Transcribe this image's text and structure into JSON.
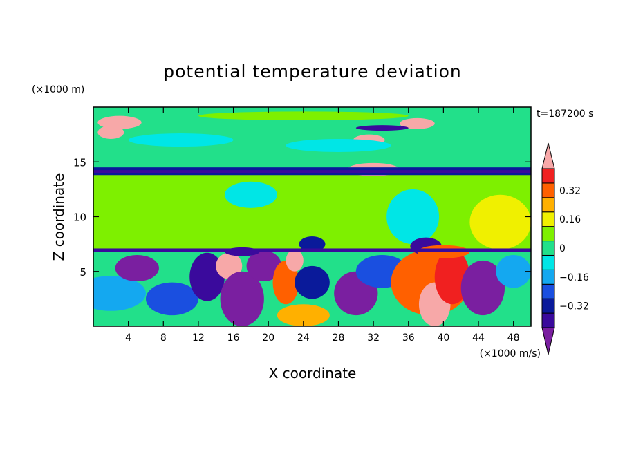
{
  "chart_data": {
    "type": "heatmap",
    "title": "potential temperature deviation",
    "xlabel": "X coordinate",
    "ylabel": "Z coordinate",
    "x_unit": "(×1000 m/s)",
    "y_unit": "(×1000 m)",
    "time_label": "t=187200 s",
    "xlim": [
      0,
      50
    ],
    "ylim": [
      0,
      20
    ],
    "x_ticks": [
      4,
      8,
      12,
      16,
      20,
      24,
      28,
      32,
      36,
      40,
      44,
      48
    ],
    "y_ticks": [
      5,
      10,
      15
    ],
    "colorbar": {
      "levels": [
        -0.48,
        -0.4,
        -0.32,
        -0.24,
        -0.16,
        -0.08,
        0,
        0.08,
        0.16,
        0.24,
        0.32,
        0.4,
        0.48
      ],
      "colors": [
        "#7a1fa0",
        "#3a0a9c",
        "#0a1a9a",
        "#1a4fe0",
        "#14a8f0",
        "#00e6e6",
        "#22e08a",
        "#7ef000",
        "#f0f000",
        "#ffb000",
        "#ff6000",
        "#f02020",
        "#f7a8a8"
      ],
      "tick_values": [
        -0.32,
        -0.16,
        0,
        0.16,
        0.32
      ],
      "tick_labels": [
        "−0.32",
        "−0.16",
        "0",
        "0.16",
        "0.32"
      ],
      "extend": "both"
    },
    "field_note_blobs": [
      {
        "cx": 2,
        "cy": 3,
        "rx": 4,
        "ry": 1.6,
        "v": -0.17
      },
      {
        "cx": 5,
        "cy": 5.3,
        "rx": 2.5,
        "ry": 1.2,
        "v": -0.45
      },
      {
        "cx": 9,
        "cy": 2.5,
        "rx": 3,
        "ry": 1.5,
        "v": -0.22
      },
      {
        "cx": 13,
        "cy": 4.5,
        "rx": 2,
        "ry": 2.2,
        "v": -0.42
      },
      {
        "cx": 15.5,
        "cy": 5.5,
        "rx": 1.5,
        "ry": 1.2,
        "v": 0.45
      },
      {
        "cx": 17,
        "cy": 2.5,
        "rx": 2.5,
        "ry": 2.5,
        "v": -0.46
      },
      {
        "cx": 19.5,
        "cy": 5.5,
        "rx": 2,
        "ry": 1.4,
        "v": -0.45
      },
      {
        "cx": 22,
        "cy": 4,
        "rx": 1.5,
        "ry": 2,
        "v": 0.3
      },
      {
        "cx": 23,
        "cy": 6,
        "rx": 1,
        "ry": 1,
        "v": 0.46
      },
      {
        "cx": 25,
        "cy": 4,
        "rx": 2,
        "ry": 1.5,
        "v": -0.35
      },
      {
        "cx": 24,
        "cy": 1,
        "rx": 3,
        "ry": 1,
        "v": 0.2
      },
      {
        "cx": 30,
        "cy": 3,
        "rx": 2.5,
        "ry": 2,
        "v": -0.45
      },
      {
        "cx": 33,
        "cy": 5,
        "rx": 3,
        "ry": 1.5,
        "v": -0.2
      },
      {
        "cx": 38.5,
        "cy": 4,
        "rx": 4.5,
        "ry": 3,
        "v": 0.3
      },
      {
        "cx": 39,
        "cy": 2,
        "rx": 1.8,
        "ry": 2,
        "v": 0.5
      },
      {
        "cx": 41,
        "cy": 4.5,
        "rx": 2,
        "ry": 2.5,
        "v": 0.4
      },
      {
        "cx": 44.5,
        "cy": 3.5,
        "rx": 2.5,
        "ry": 2.5,
        "v": -0.45
      },
      {
        "cx": 48,
        "cy": 5,
        "rx": 2,
        "ry": 1.5,
        "v": -0.15
      },
      {
        "cx": 46.5,
        "cy": 9.5,
        "rx": 3.5,
        "ry": 2.5,
        "v": 0.18
      },
      {
        "cx": 36.5,
        "cy": 10,
        "rx": 3,
        "ry": 2.5,
        "v": -0.08
      },
      {
        "cx": 18,
        "cy": 12,
        "rx": 3,
        "ry": 1.2,
        "v": -0.1
      },
      {
        "cx": 38,
        "cy": 7.3,
        "rx": 1.8,
        "ry": 0.8,
        "v": -0.4
      },
      {
        "cx": 25,
        "cy": 7.5,
        "rx": 1.5,
        "ry": 0.7,
        "v": -0.3
      },
      {
        "cx": 17,
        "cy": 6.8,
        "rx": 2,
        "ry": 0.4,
        "v": -0.4
      },
      {
        "cx": 40,
        "cy": 6.8,
        "rx": 3,
        "ry": 0.6,
        "v": 0.35
      },
      {
        "cx": 3,
        "cy": 18.6,
        "rx": 2.5,
        "ry": 0.6,
        "v": 0.48
      },
      {
        "cx": 2,
        "cy": 17.7,
        "rx": 1.5,
        "ry": 0.6,
        "v": 0.48
      },
      {
        "cx": 37,
        "cy": 18.5,
        "rx": 2,
        "ry": 0.5,
        "v": 0.48
      },
      {
        "cx": 31.5,
        "cy": 17,
        "rx": 1.8,
        "ry": 0.5,
        "v": 0.48
      },
      {
        "cx": 32,
        "cy": 14.3,
        "rx": 3,
        "ry": 0.6,
        "v": 0.48
      },
      {
        "cx": 33,
        "cy": 18.1,
        "rx": 3,
        "ry": 0.25,
        "v": -0.4
      },
      {
        "cx": 10,
        "cy": 17,
        "rx": 6,
        "ry": 0.6,
        "v": -0.06
      },
      {
        "cx": 28,
        "cy": 16.5,
        "rx": 6,
        "ry": 0.6,
        "v": -0.06
      },
      {
        "cx": 24,
        "cy": 19.2,
        "rx": 12,
        "ry": 0.4,
        "v": 0.05
      }
    ]
  }
}
